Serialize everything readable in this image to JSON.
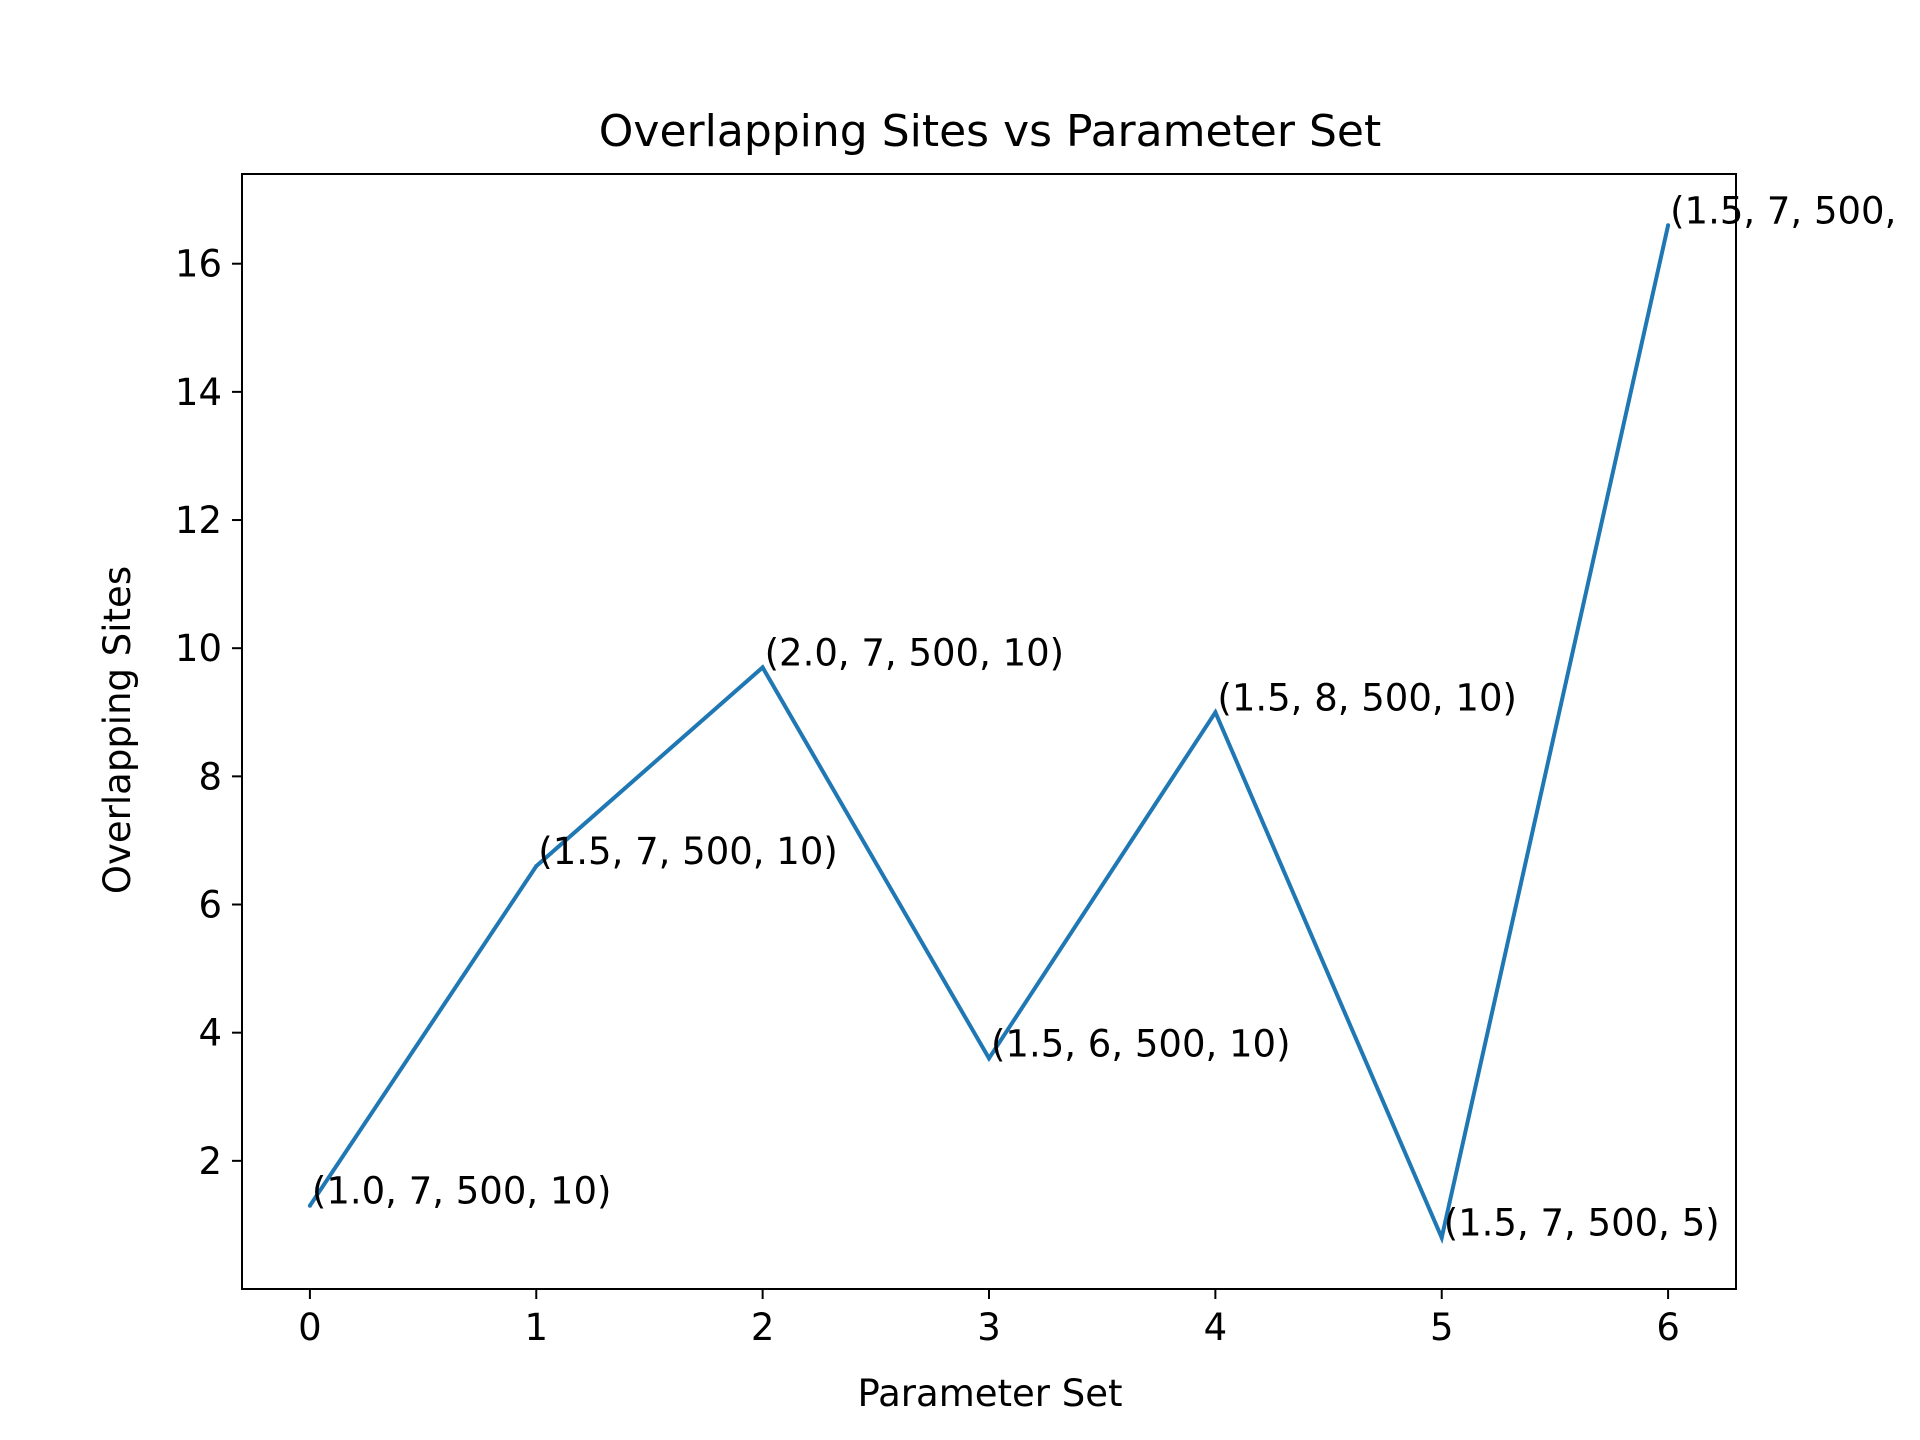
{
  "chart_data": {
    "type": "line",
    "title": "Overlapping Sites vs Parameter Set",
    "xlabel": "Parameter Set",
    "ylabel": "Overlapping Sites",
    "x": [
      0,
      1,
      2,
      3,
      4,
      5,
      6
    ],
    "y": [
      1.3,
      6.6,
      9.7,
      3.6,
      9.0,
      0.8,
      16.6
    ],
    "annotations": [
      "(1.0, 7, 500, 10)",
      "(1.5, 7, 500, 10)",
      "(2.0, 7, 500, 10)",
      "(1.5, 6, 500, 10)",
      "(1.5, 8, 500, 10)",
      "(1.5, 7, 500, 5)",
      "(1.5, 7, 500,"
    ],
    "xticks": [
      0,
      1,
      2,
      3,
      4,
      5,
      6
    ],
    "yticks": [
      2,
      4,
      6,
      8,
      10,
      12,
      14,
      16
    ],
    "xlim": [
      -0.3,
      6.3
    ],
    "ylim": [
      0,
      17.4
    ],
    "grid": false,
    "legend": false,
    "line_color": "#1f77b4"
  }
}
